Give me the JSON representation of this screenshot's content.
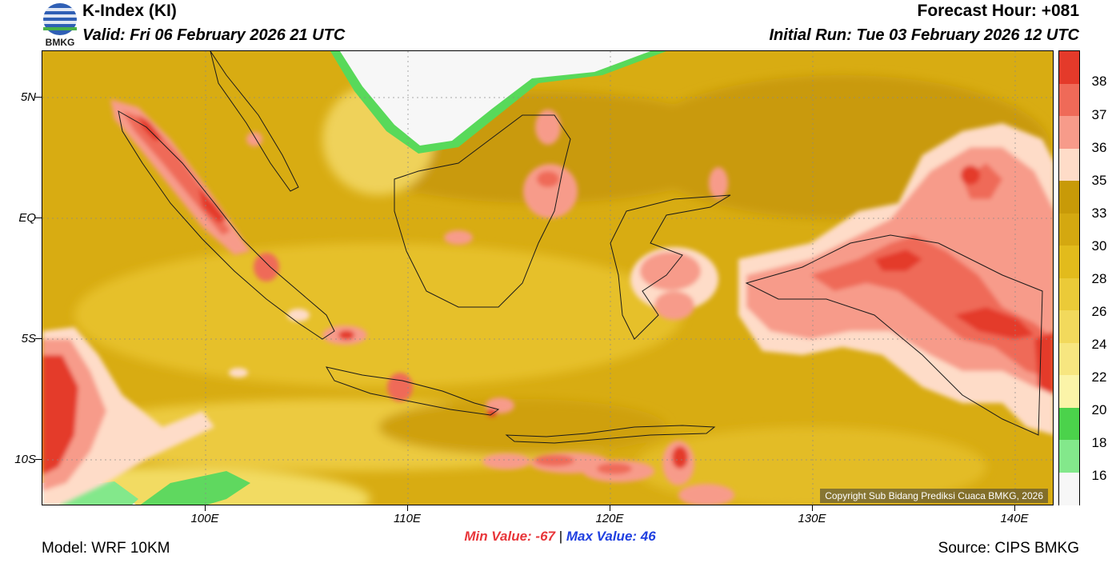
{
  "header": {
    "title": "K-Index (KI)",
    "valid": "Valid: Fri 06 February 2026 21 UTC",
    "forecast_hour": "Forecast Hour: +081",
    "initial_run": "Initial Run: Tue 03 February 2026 12 UTC",
    "logo_text": "BMKG"
  },
  "map": {
    "lat_labels": [
      "5N",
      "EQ",
      "5S",
      "10S"
    ],
    "lon_labels": [
      "100E",
      "110E",
      "120E",
      "130E",
      "140E"
    ],
    "copyright": "Copyright Sub Bidang Prediksi Cuaca BMKG, 2026"
  },
  "colorbar": {
    "labels": [
      "38",
      "37",
      "36",
      "35",
      "33",
      "30",
      "28",
      "26",
      "24",
      "22",
      "20",
      "18",
      "16"
    ],
    "colors": [
      "#e43a2a",
      "#ef6a58",
      "#f79b8a",
      "#fedcc8",
      "#c89a08",
      "#d4a810",
      "#e2bb1c",
      "#ebca38",
      "#f2d95c",
      "#f7e680",
      "#fbf4a8",
      "#4bd24b",
      "#83e88b",
      "#f7f7f7"
    ]
  },
  "stats": {
    "min": "Min Value: -67",
    "separator": "|",
    "max": "Max Value:  46"
  },
  "footer": {
    "model": "Model: WRF 10KM",
    "source": "Source: CIPS BMKG"
  }
}
